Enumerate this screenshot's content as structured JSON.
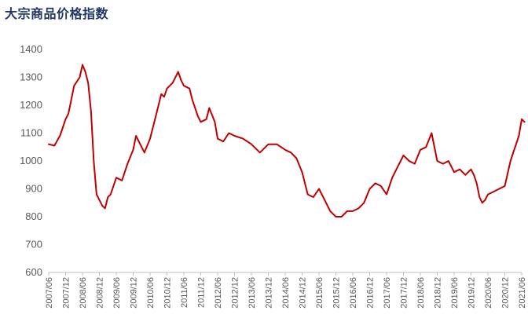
{
  "chart_data": {
    "type": "line",
    "title": "大宗商品价格指数",
    "xlabel": "",
    "ylabel": "",
    "ylim": [
      600,
      1400
    ],
    "yticks": [
      600,
      700,
      800,
      900,
      1000,
      1100,
      1200,
      1300,
      1400
    ],
    "grid": false,
    "legend": "none",
    "x_tick_labels": [
      "2007/06",
      "2007/12",
      "2008/06",
      "2008/12",
      "2009/06",
      "2009/12",
      "2010/06",
      "2010/12",
      "2011/06",
      "2011/12",
      "2012/06",
      "2012/12",
      "2013/06",
      "2013/12",
      "2014/06",
      "2014/12",
      "2015/06",
      "2015/12",
      "2016/06",
      "2016/12",
      "2017/06",
      "2017/12",
      "2018/06",
      "2018/12",
      "2019/06",
      "2019/12",
      "2020/06",
      "2020/12",
      "2021/06"
    ],
    "series": [
      {
        "name": "",
        "color": "#c00000",
        "x": [
          "2007-06",
          "2007-08",
          "2007-10",
          "2007-12",
          "2008-01",
          "2008-03",
          "2008-05",
          "2008-06",
          "2008-07",
          "2008-08",
          "2008-09",
          "2008-10",
          "2008-11",
          "2008-12",
          "2009-01",
          "2009-02",
          "2009-03",
          "2009-04",
          "2009-06",
          "2009-08",
          "2009-10",
          "2009-12",
          "2010-01",
          "2010-02",
          "2010-04",
          "2010-06",
          "2010-08",
          "2010-10",
          "2010-11",
          "2010-12",
          "2011-02",
          "2011-04",
          "2011-05",
          "2011-06",
          "2011-08",
          "2011-09",
          "2011-11",
          "2011-12",
          "2012-02",
          "2012-03",
          "2012-05",
          "2012-06",
          "2012-08",
          "2012-10",
          "2012-12",
          "2013-03",
          "2013-06",
          "2013-09",
          "2013-12",
          "2014-03",
          "2014-06",
          "2014-08",
          "2014-10",
          "2014-12",
          "2015-02",
          "2015-04",
          "2015-06",
          "2015-08",
          "2015-10",
          "2015-12",
          "2016-02",
          "2016-04",
          "2016-06",
          "2016-08",
          "2016-10",
          "2016-12",
          "2017-02",
          "2017-04",
          "2017-06",
          "2017-08",
          "2017-10",
          "2017-12",
          "2018-02",
          "2018-04",
          "2018-06",
          "2018-08",
          "2018-10",
          "2018-12",
          "2019-02",
          "2019-04",
          "2019-06",
          "2019-08",
          "2019-10",
          "2019-12",
          "2020-01",
          "2020-02",
          "2020-03",
          "2020-04",
          "2020-05",
          "2020-06",
          "2020-08",
          "2020-10",
          "2020-12",
          "2021-02",
          "2021-04",
          "2021-05",
          "2021-06",
          "2021-07"
        ],
        "y": [
          1060,
          1055,
          1090,
          1150,
          1170,
          1270,
          1300,
          1345,
          1320,
          1280,
          1180,
          1000,
          880,
          860,
          840,
          830,
          870,
          880,
          940,
          930,
          990,
          1040,
          1090,
          1070,
          1030,
          1080,
          1160,
          1240,
          1230,
          1260,
          1280,
          1320,
          1290,
          1270,
          1260,
          1220,
          1160,
          1140,
          1150,
          1190,
          1140,
          1080,
          1070,
          1100,
          1090,
          1080,
          1060,
          1030,
          1060,
          1060,
          1040,
          1030,
          1010,
          960,
          880,
          870,
          900,
          860,
          820,
          800,
          800,
          820,
          820,
          830,
          850,
          900,
          920,
          910,
          880,
          940,
          980,
          1020,
          1000,
          990,
          1040,
          1050,
          1100,
          1000,
          990,
          1000,
          960,
          970,
          950,
          970,
          950,
          920,
          870,
          850,
          860,
          880,
          890,
          900,
          910,
          1000,
          1060,
          1090,
          1150,
          1140
        ]
      }
    ]
  }
}
